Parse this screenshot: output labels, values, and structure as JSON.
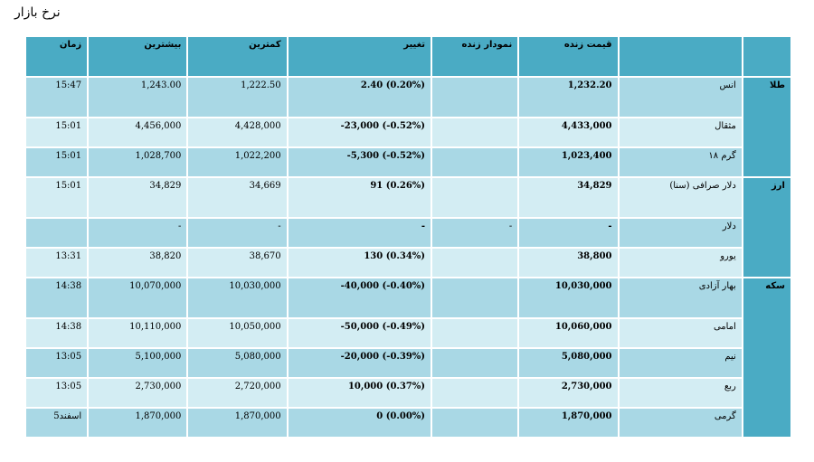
{
  "page": {
    "title": "نرخ بازار"
  },
  "table": {
    "headers": {
      "time": "زمان",
      "high": "بیشترین",
      "low": "کمترین",
      "change": "تغییر",
      "live_chart": "نمودار زنده",
      "live_price": "قیمت زنده",
      "name": "",
      "group": ""
    },
    "groups": [
      {
        "label": "طلا",
        "rows": [
          {
            "name": "انس",
            "live_price": "1,232.20",
            "live_chart": "",
            "change": "2.40 (0.20%)",
            "low": "1,222.50",
            "high": "1,243.00",
            "time": "15:47"
          },
          {
            "name": "مثقال",
            "live_price": "4,433,000",
            "live_chart": "",
            "change": "-23,000 (-0.52%)",
            "low": "4,428,000",
            "high": "4,456,000",
            "time": "15:01"
          },
          {
            "name": "گرم ۱۸",
            "live_price": "1,023,400",
            "live_chart": "",
            "change": "-5,300 (-0.52%)",
            "low": "1,022,200",
            "high": "1,028,700",
            "time": "15:01"
          }
        ]
      },
      {
        "label": "ارز",
        "rows": [
          {
            "name": "دلار صرافی (سنا)",
            "live_price": "34,829",
            "live_chart": "",
            "change": "91 (0.26%)",
            "low": "34,669",
            "high": "34,829",
            "time": "15:01"
          },
          {
            "name": "دلار",
            "live_price": "-",
            "live_chart": "-",
            "change": "-",
            "low": "-",
            "high": "-",
            "time": ""
          },
          {
            "name": "یورو",
            "live_price": "38,800",
            "live_chart": "",
            "change": "130 (0.34%)",
            "low": "38,670",
            "high": "38,820",
            "time": "13:31"
          }
        ]
      },
      {
        "label": "سکه",
        "rows": [
          {
            "name": "بهار آزادی",
            "live_price": "10,030,000",
            "live_chart": "",
            "change": "-40,000 (-0.40%)",
            "low": "10,030,000",
            "high": "10,070,000",
            "time": "14:38"
          },
          {
            "name": "امامی",
            "live_price": "10,060,000",
            "live_chart": "",
            "change": "-50,000 (-0.49%)",
            "low": "10,050,000",
            "high": "10,110,000",
            "time": "14:38"
          },
          {
            "name": "نیم",
            "live_price": "5,080,000",
            "live_chart": "",
            "change": "-20,000 (-0.39%)",
            "low": "5,080,000",
            "high": "5,100,000",
            "time": "13:05"
          },
          {
            "name": "ربع",
            "live_price": "2,730,000",
            "live_chart": "",
            "change": "10,000 (0.37%)",
            "low": "2,720,000",
            "high": "2,730,000",
            "time": "13:05"
          },
          {
            "name": "گرمی",
            "live_price": "1,870,000",
            "live_chart": "",
            "change": "0 (0.00%)",
            "low": "1,870,000",
            "high": "1,870,000",
            "time": "5اسفند"
          }
        ]
      }
    ]
  }
}
